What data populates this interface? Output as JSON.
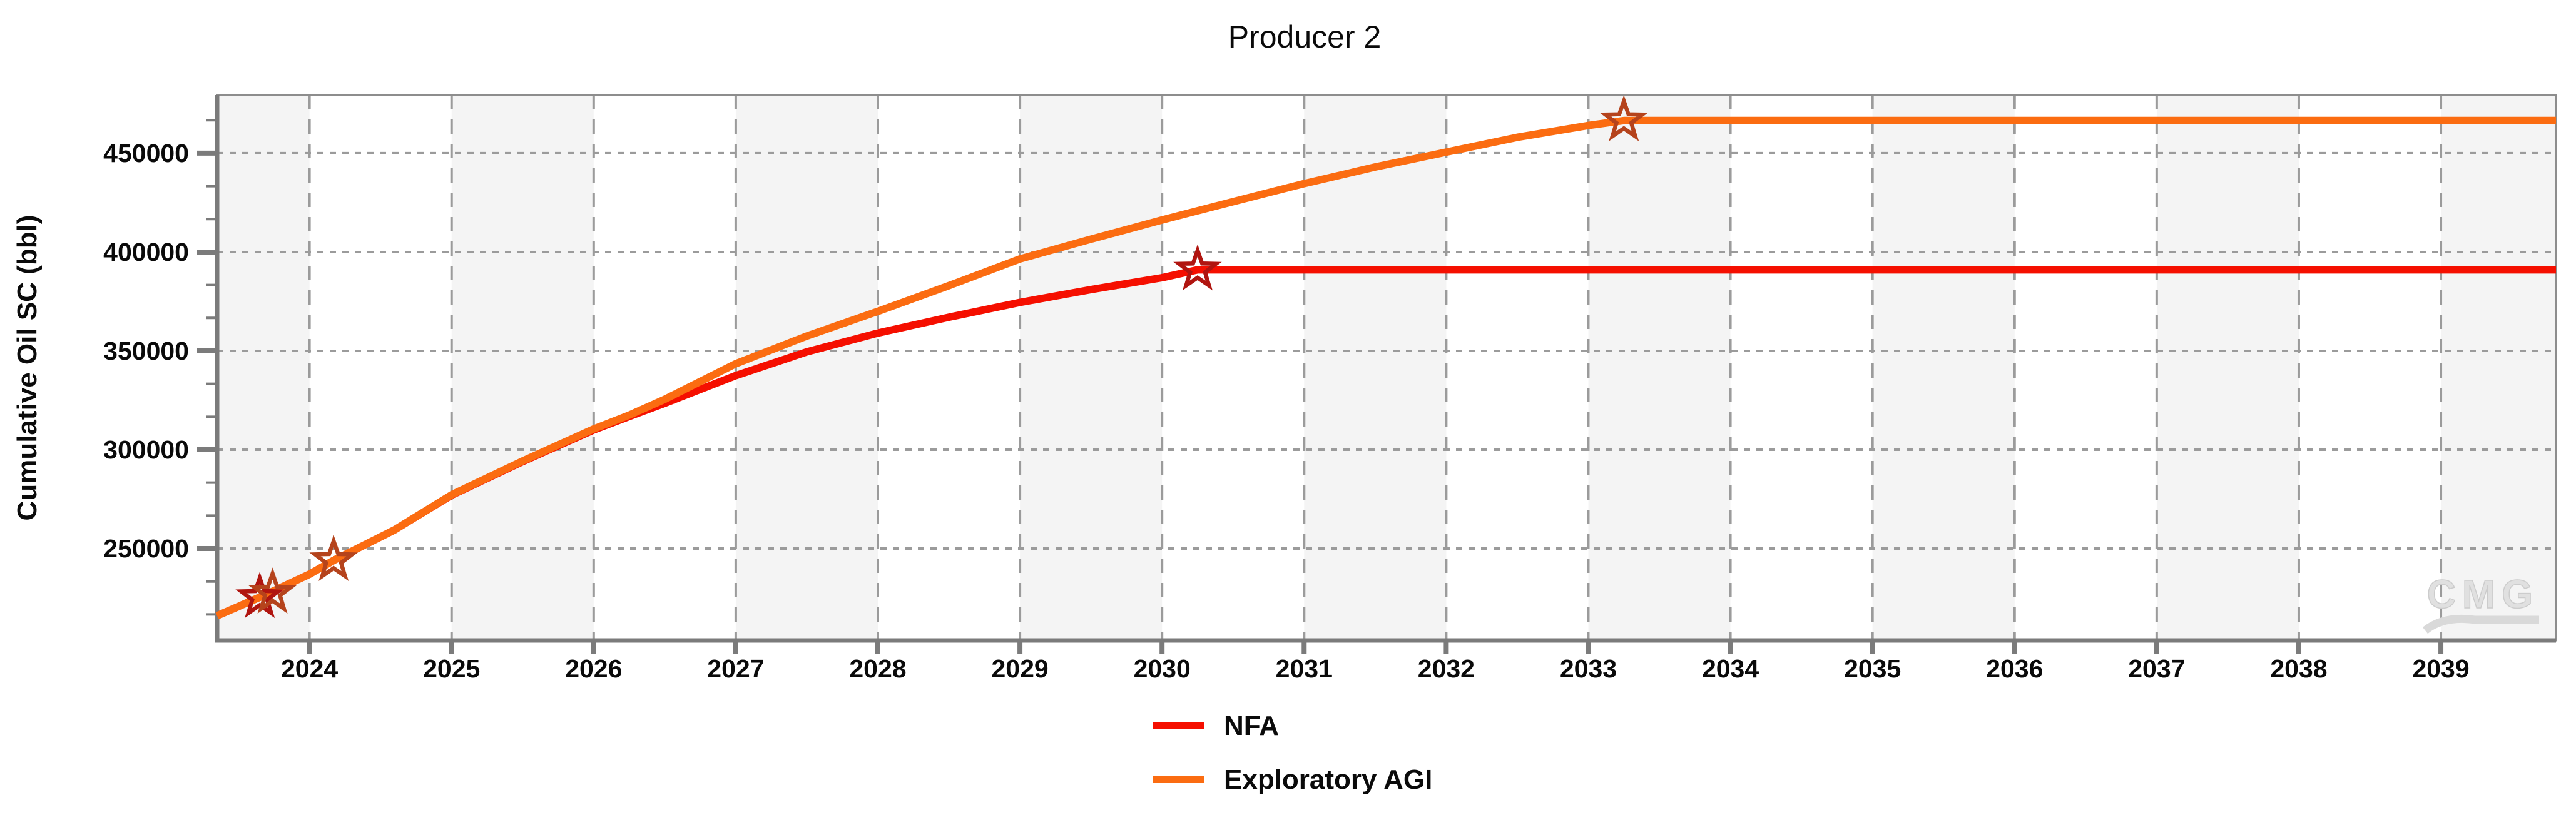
{
  "title": {
    "text": "Producer 2"
  },
  "watermark": {
    "text": "CMG"
  },
  "styles": {
    "band_fill": "#f4f4f4",
    "plot_fill": "#ffffff",
    "grid_color": "#9b9b9b",
    "border_color": "#8d8d8d",
    "axis_color": "#7b7b7b",
    "text_color": "#0a0a0a",
    "watermark_color": "#d9d9d9",
    "nfa_color": "#f50f00",
    "agi_color": "#fb6c11",
    "nfa_marker_color": "#b01510",
    "agi_marker_color": "#b5431c"
  },
  "chart_data": {
    "type": "line",
    "title": "Producer 2",
    "xlabel": "",
    "ylabel": "Cumulative Oil SC (bbl)",
    "xlim": [
      2023.35,
      2039.81
    ],
    "ylim": [
      203500,
      479400
    ],
    "x_ticks": [
      2024,
      2025,
      2026,
      2027,
      2028,
      2029,
      2030,
      2031,
      2032,
      2033,
      2034,
      2035,
      2036,
      2037,
      2038,
      2039
    ],
    "y_ticks": [
      250000,
      300000,
      350000,
      400000,
      450000
    ],
    "y_minor_tick_step": 16666.67,
    "grid": {
      "horizontal": "dashed-major",
      "vertical": "dashed-yearly",
      "bands": "alternate years shaded starting at odd years"
    },
    "legend_position": "bottom-center",
    "series": [
      {
        "name": "NFA",
        "color": "#f50f00",
        "marker": "star",
        "marker_color": "#b01510",
        "points": [
          [
            2023.35,
            216000
          ],
          [
            2023.67,
            226000
          ],
          [
            2024.0,
            237000
          ],
          [
            2024.17,
            244000
          ],
          [
            2024.6,
            259500
          ],
          [
            2025.0,
            277000
          ],
          [
            2025.5,
            294000
          ],
          [
            2026.0,
            310000
          ],
          [
            2026.25,
            316800
          ],
          [
            2026.5,
            323500
          ],
          [
            2027.0,
            337500
          ],
          [
            2027.5,
            349500
          ],
          [
            2028.0,
            359000
          ],
          [
            2028.5,
            367000
          ],
          [
            2029.0,
            374500
          ],
          [
            2029.5,
            381000
          ],
          [
            2030.0,
            387000
          ],
          [
            2030.25,
            391000
          ],
          [
            2039.81,
            391000
          ]
        ],
        "markers": [
          [
            2023.65,
            225300
          ],
          [
            2030.25,
            391000
          ]
        ]
      },
      {
        "name": "Exploratory AGI",
        "color": "#fb6c11",
        "marker": "star",
        "marker_color": "#b5431c",
        "points": [
          [
            2023.35,
            216000
          ],
          [
            2023.67,
            226000
          ],
          [
            2024.0,
            237000
          ],
          [
            2024.17,
            244000
          ],
          [
            2024.6,
            259500
          ],
          [
            2025.0,
            277200
          ],
          [
            2025.5,
            294300
          ],
          [
            2026.0,
            310500
          ],
          [
            2026.25,
            317500
          ],
          [
            2026.5,
            325500
          ],
          [
            2027.0,
            343500
          ],
          [
            2027.5,
            357500
          ],
          [
            2028.0,
            370000
          ],
          [
            2028.5,
            383000
          ],
          [
            2029.0,
            396500
          ],
          [
            2029.5,
            406500
          ],
          [
            2030.0,
            416200
          ],
          [
            2030.5,
            425500
          ],
          [
            2031.0,
            434600
          ],
          [
            2031.5,
            443000
          ],
          [
            2032.0,
            450500
          ],
          [
            2032.5,
            458000
          ],
          [
            2033.0,
            464000
          ],
          [
            2033.25,
            466500
          ],
          [
            2039.81,
            466500
          ]
        ],
        "markers": [
          [
            2023.74,
            227500
          ],
          [
            2024.17,
            244000
          ],
          [
            2033.25,
            466500
          ]
        ]
      }
    ]
  }
}
